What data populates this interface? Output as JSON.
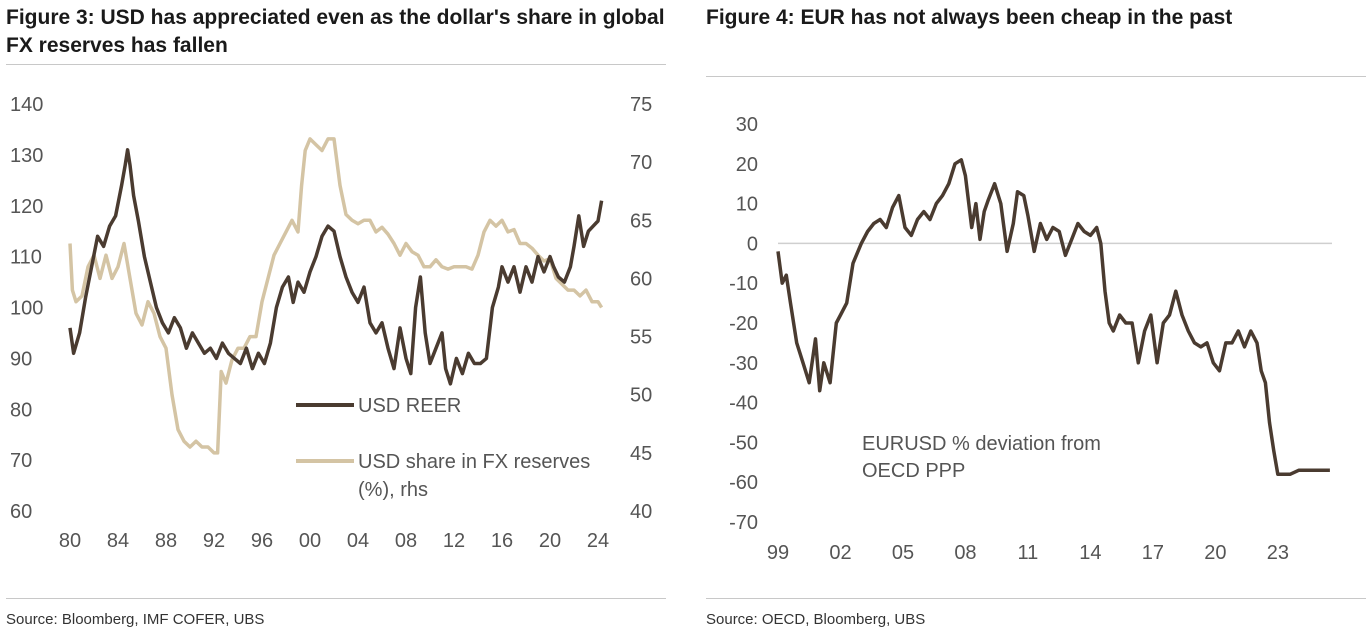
{
  "figure3": {
    "title": "Figure 3: USD has appreciated even as the dollar's share in global FX reserves has fallen",
    "source": "Source: Bloomberg, IMF COFER, UBS",
    "legend": [
      {
        "label": "USD REER",
        "color": "#4a3b30"
      },
      {
        "label": "USD share in FX reserves (%), rhs",
        "line1": "USD share in FX reserves",
        "line2": "(%), rhs",
        "color": "#d4c4a4"
      }
    ]
  },
  "figure4": {
    "title": "Figure 4: EUR has not always been cheap in the past",
    "source": "Source: OECD, Bloomberg, UBS",
    "annotation": {
      "line1": "EURUSD % deviation from",
      "line2": "OECD PPP"
    }
  },
  "chart_data": [
    {
      "type": "line",
      "title": "Figure 3: USD has appreciated even as the dollar's share in global FX reserves has fallen",
      "x_tick_labels": [
        "80",
        "84",
        "88",
        "92",
        "96",
        "00",
        "04",
        "08",
        "12",
        "16",
        "20",
        "24"
      ],
      "x_ticks": [
        1980,
        1984,
        1988,
        1992,
        1996,
        2000,
        2004,
        2008,
        2012,
        2016,
        2020,
        2024
      ],
      "xlim": [
        1980,
        2024.5
      ],
      "ylim": [
        60,
        140
      ],
      "y_ticks": [
        60,
        70,
        80,
        90,
        100,
        110,
        120,
        130,
        140
      ],
      "y_tick_labels": [
        "60",
        "70",
        "80",
        "90",
        "100",
        "110",
        "120",
        "130",
        "140"
      ],
      "y2lim": [
        40,
        75
      ],
      "y2_ticks": [
        40,
        45,
        50,
        55,
        60,
        65,
        70,
        75
      ],
      "y2_tick_labels": [
        "40",
        "45",
        "50",
        "55",
        "60",
        "65",
        "70",
        "75"
      ],
      "series": [
        {
          "name": "USD REER",
          "axis": "left",
          "color": "#4a3b30",
          "x": [
            1980.0,
            1980.3,
            1980.8,
            1981.3,
            1981.8,
            1982.3,
            1982.8,
            1983.3,
            1983.8,
            1984.3,
            1984.6,
            1984.8,
            1985.0,
            1985.3,
            1985.7,
            1986.2,
            1986.7,
            1987.2,
            1987.7,
            1988.2,
            1988.7,
            1989.2,
            1989.7,
            1990.2,
            1990.7,
            1991.2,
            1991.7,
            1992.2,
            1992.7,
            1993.2,
            1993.7,
            1994.2,
            1994.7,
            1995.2,
            1995.7,
            1996.2,
            1996.7,
            1997.2,
            1997.7,
            1998.2,
            1998.6,
            1999.0,
            1999.5,
            2000.0,
            2000.5,
            2001.0,
            2001.5,
            2002.0,
            2002.5,
            2003.0,
            2003.5,
            2004.0,
            2004.5,
            2005.0,
            2005.5,
            2006.0,
            2006.5,
            2007.0,
            2007.5,
            2008.0,
            2008.4,
            2008.8,
            2009.2,
            2009.6,
            2010.0,
            2010.5,
            2011.0,
            2011.3,
            2011.7,
            2012.2,
            2012.7,
            2013.2,
            2013.7,
            2014.2,
            2014.7,
            2015.2,
            2015.7,
            2016.0,
            2016.5,
            2017.0,
            2017.5,
            2018.0,
            2018.5,
            2019.0,
            2019.5,
            2020.0,
            2020.3,
            2020.7,
            2021.2,
            2021.7,
            2022.0,
            2022.4,
            2022.8,
            2023.2,
            2023.6,
            2024.0,
            2024.3
          ],
          "y": [
            96,
            91,
            95,
            102,
            108,
            114,
            112,
            116,
            118,
            124,
            128,
            131,
            128,
            122,
            117,
            110,
            105,
            100,
            97,
            95,
            98,
            96,
            92,
            95,
            93,
            91,
            92,
            90,
            93,
            91,
            90,
            89,
            92,
            88,
            91,
            89,
            93,
            100,
            104,
            106,
            101,
            105,
            103,
            107,
            110,
            114,
            116,
            115,
            110,
            106,
            103,
            101,
            104,
            97,
            95,
            97,
            92,
            88,
            96,
            90,
            87,
            100,
            106,
            95,
            89,
            92,
            95,
            88,
            85,
            90,
            87,
            91,
            89,
            89,
            90,
            100,
            104,
            108,
            105,
            108,
            103,
            108,
            105,
            110,
            107,
            110,
            108,
            106,
            105,
            108,
            112,
            118,
            112,
            115,
            116,
            117,
            121
          ]
        },
        {
          "name": "USD share in FX reserves (%), rhs",
          "axis": "right",
          "color": "#d4c4a4",
          "x": [
            1980.0,
            1980.2,
            1980.5,
            1981.0,
            1981.5,
            1982.0,
            1982.5,
            1983.0,
            1983.5,
            1984.0,
            1984.5,
            1985.0,
            1985.5,
            1986.0,
            1986.5,
            1987.0,
            1987.5,
            1988.0,
            1988.5,
            1989.0,
            1989.5,
            1990.0,
            1990.5,
            1991.0,
            1991.5,
            1992.0,
            1992.3,
            1992.6,
            1993.0,
            1993.5,
            1994.0,
            1994.5,
            1995.0,
            1995.5,
            1996.0,
            1996.5,
            1997.0,
            1997.5,
            1998.0,
            1998.5,
            1999.0,
            1999.3,
            1999.6,
            2000.0,
            2000.5,
            2001.0,
            2001.5,
            2002.0,
            2002.5,
            2003.0,
            2003.5,
            2004.0,
            2004.5,
            2005.0,
            2005.5,
            2006.0,
            2006.5,
            2007.0,
            2007.5,
            2008.0,
            2008.5,
            2009.0,
            2009.5,
            2010.0,
            2010.5,
            2011.0,
            2011.5,
            2012.0,
            2012.5,
            2013.0,
            2013.5,
            2014.0,
            2014.5,
            2015.0,
            2015.5,
            2016.0,
            2016.5,
            2017.0,
            2017.5,
            2018.0,
            2018.5,
            2019.0,
            2019.5,
            2020.0,
            2020.5,
            2021.0,
            2021.5,
            2022.0,
            2022.5,
            2023.0,
            2023.5,
            2024.0,
            2024.3
          ],
          "y": [
            63,
            59,
            58,
            58.5,
            61,
            62,
            60,
            62,
            60,
            61,
            63,
            60,
            57,
            56,
            58,
            57,
            55,
            54,
            50,
            47,
            46,
            45.5,
            46,
            45.5,
            45.5,
            45,
            45,
            52,
            51,
            53,
            54,
            54,
            55,
            55,
            58,
            60,
            62,
            63,
            64,
            65,
            64,
            68,
            71,
            72,
            71.5,
            71,
            72,
            72,
            68,
            65.5,
            65,
            64.7,
            65,
            65,
            64,
            64.4,
            63.8,
            63,
            62,
            63,
            62.3,
            62,
            61,
            61,
            61.6,
            61,
            60.8,
            61,
            61,
            61,
            60.8,
            62,
            64,
            65,
            64.5,
            65,
            64,
            64.2,
            63,
            63,
            62.6,
            62,
            61.5,
            61.7,
            60,
            59.5,
            59,
            59,
            58.5,
            59,
            58,
            58,
            57.5
          ]
        }
      ]
    },
    {
      "type": "line",
      "title": "Figure 4: EUR has not always been cheap in the past",
      "x_tick_labels": [
        "99",
        "02",
        "05",
        "08",
        "11",
        "14",
        "17",
        "20",
        "23"
      ],
      "x_ticks": [
        1999,
        2002,
        2005,
        2008,
        2011,
        2014,
        2017,
        2020,
        2023
      ],
      "xlim": [
        1999,
        2025.6
      ],
      "ylim": [
        -70,
        30
      ],
      "y_ticks": [
        -70,
        -60,
        -50,
        -40,
        -30,
        -20,
        -10,
        0,
        10,
        20,
        30
      ],
      "y_tick_labels": [
        "-70",
        "-60",
        "-50",
        "-40",
        "-30",
        "-20",
        "-10",
        "0",
        "10",
        "20",
        "30"
      ],
      "series": [
        {
          "name": "EURUSD % deviation from OECD PPP",
          "axis": "left",
          "color": "#4a3b30",
          "x": [
            1999.0,
            1999.2,
            1999.4,
            1999.6,
            1999.9,
            2000.2,
            2000.5,
            2000.8,
            2001.0,
            2001.2,
            2001.5,
            2001.8,
            2002.0,
            2002.3,
            2002.6,
            2003.0,
            2003.3,
            2003.6,
            2003.9,
            2004.2,
            2004.5,
            2004.8,
            2005.1,
            2005.4,
            2005.7,
            2006.0,
            2006.3,
            2006.6,
            2006.9,
            2007.2,
            2007.5,
            2007.8,
            2008.0,
            2008.3,
            2008.5,
            2008.7,
            2008.9,
            2009.1,
            2009.4,
            2009.7,
            2010.0,
            2010.3,
            2010.5,
            2010.8,
            2011.0,
            2011.3,
            2011.6,
            2011.9,
            2012.2,
            2012.5,
            2012.8,
            2013.1,
            2013.4,
            2013.7,
            2014.0,
            2014.3,
            2014.5,
            2014.7,
            2014.9,
            2015.1,
            2015.4,
            2015.7,
            2016.0,
            2016.3,
            2016.6,
            2016.9,
            2017.2,
            2017.5,
            2017.8,
            2018.1,
            2018.4,
            2018.7,
            2019.0,
            2019.3,
            2019.6,
            2019.9,
            2020.2,
            2020.5,
            2020.8,
            2021.1,
            2021.4,
            2021.7,
            2022.0,
            2022.2,
            2022.4,
            2022.6,
            2022.8,
            2023.0,
            2023.3,
            2023.6,
            2024.0,
            2024.5,
            2025.0,
            2025.5
          ],
          "x_note": "calendar years",
          "y": [
            -2,
            -10,
            -8,
            -15,
            -25,
            -30,
            -35,
            -24,
            -37,
            -30,
            -35,
            -20,
            -18,
            -15,
            -5,
            0,
            3,
            5,
            6,
            4,
            9,
            12,
            4,
            2,
            6,
            8,
            6,
            10,
            12,
            15,
            20,
            21,
            17,
            4,
            10,
            1,
            8,
            11,
            15,
            10,
            -2,
            5,
            13,
            12,
            7,
            -2,
            5,
            1,
            4,
            3,
            -3,
            1,
            5,
            3,
            2,
            4,
            0,
            -12,
            -20,
            -22,
            -18,
            -20,
            -20,
            -30,
            -22,
            -18,
            -30,
            -20,
            -18,
            -12,
            -18,
            -22,
            -25,
            -26,
            -25,
            -30,
            -32,
            -25,
            -25,
            -22,
            -26,
            -22,
            -25,
            -32,
            -35,
            -45,
            -52,
            -58,
            -58,
            -58,
            -57,
            -57,
            -57,
            -57
          ]
        }
      ]
    }
  ]
}
